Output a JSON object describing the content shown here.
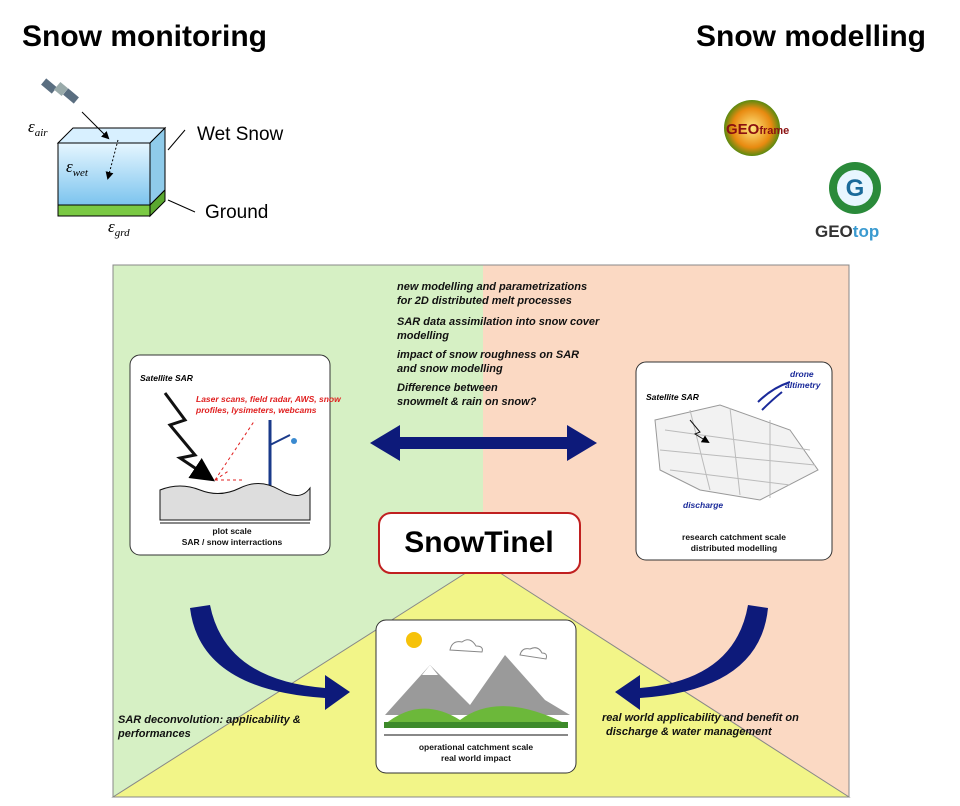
{
  "header": {
    "left_title": "Snow monitoring",
    "right_title": "Snow modelling"
  },
  "cube": {
    "eps_air": {
      "symbol": "ε",
      "sub": "air"
    },
    "eps_wet": {
      "symbol": "ε",
      "sub": "wet"
    },
    "eps_grd": {
      "symbol": "ε",
      "sub": "grd"
    },
    "wet_snow": "Wet Snow",
    "ground": "Ground"
  },
  "logos": {
    "geoframe": {
      "main": "GEO",
      "tail": "frame"
    },
    "geotop": {
      "letter": "G",
      "main": "GEO",
      "tail": "top"
    }
  },
  "center_notes": [
    [
      "new modelling and parametrizations",
      "for 2D distributed melt processes"
    ],
    [
      "SAR data assimilation into snow cover",
      "modelling"
    ],
    [
      "impact of snow roughness on SAR",
      "and snow modelling"
    ],
    [
      "Difference between",
      "snowmelt & rain on snow?"
    ]
  ],
  "left_box": {
    "satellite": "Satellite SAR",
    "instruments": [
      "Laser scans, field radar, AWS, snow",
      "profiles, lysimeters, webcams"
    ],
    "caption": [
      "plot scale",
      "SAR / snow interractions"
    ]
  },
  "right_box": {
    "satellite": "Satellite SAR",
    "drone": [
      "drone",
      "altimetry"
    ],
    "discharge": "discharge",
    "caption": [
      "research catchment scale",
      "distributed modelling"
    ]
  },
  "center_title": "SnowTinel",
  "bottom_box": {
    "caption": [
      "operational catchment scale",
      "real world impact"
    ]
  },
  "left_note": [
    "SAR deconvolution: applicability &",
    "performances"
  ],
  "right_note": [
    "real world applicability and benefit on",
    "discharge & water management"
  ]
}
